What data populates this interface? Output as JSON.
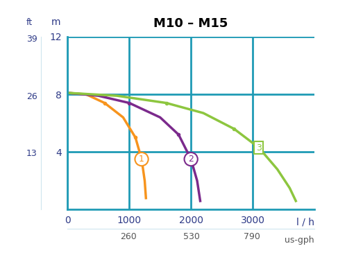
{
  "chart_data": {
    "type": "line",
    "title": "M10 – M15",
    "xlabel": "l / h",
    "ylabel": "m",
    "x2label": "us-gph",
    "y2label": "ft",
    "xlim": [
      0,
      4000
    ],
    "xticks": [
      0,
      1000,
      2000,
      3000
    ],
    "x2lim": [
      0,
      1057
    ],
    "x2ticks": [
      260,
      530,
      790
    ],
    "ylim": [
      0,
      12
    ],
    "yticks": [
      4,
      8,
      12
    ],
    "y2lim": [
      0,
      39.37
    ],
    "y2ticks": [
      13,
      26,
      39
    ],
    "grid": true,
    "marker": "dot",
    "series": [
      {
        "name": "1",
        "color": "#f7941d",
        "x": [
          0,
          300,
          600,
          900,
          1100,
          1200,
          1250,
          1270
        ],
        "values": [
          8.1,
          8.0,
          7.4,
          6.4,
          5.0,
          3.5,
          2.0,
          0.8
        ]
      },
      {
        "name": "2",
        "color": "#7b2a8c",
        "x": [
          0,
          500,
          1000,
          1500,
          1800,
          2000,
          2100,
          2150
        ],
        "values": [
          8.1,
          7.9,
          7.4,
          6.4,
          5.2,
          3.5,
          2.0,
          0.6
        ]
      },
      {
        "name": "3",
        "color": "#8dc63f",
        "x": [
          0,
          800,
          1600,
          2200,
          2700,
          3100,
          3400,
          3600,
          3700
        ],
        "values": [
          8.1,
          7.9,
          7.4,
          6.7,
          5.6,
          4.3,
          2.8,
          1.5,
          0.6
        ]
      }
    ]
  }
}
